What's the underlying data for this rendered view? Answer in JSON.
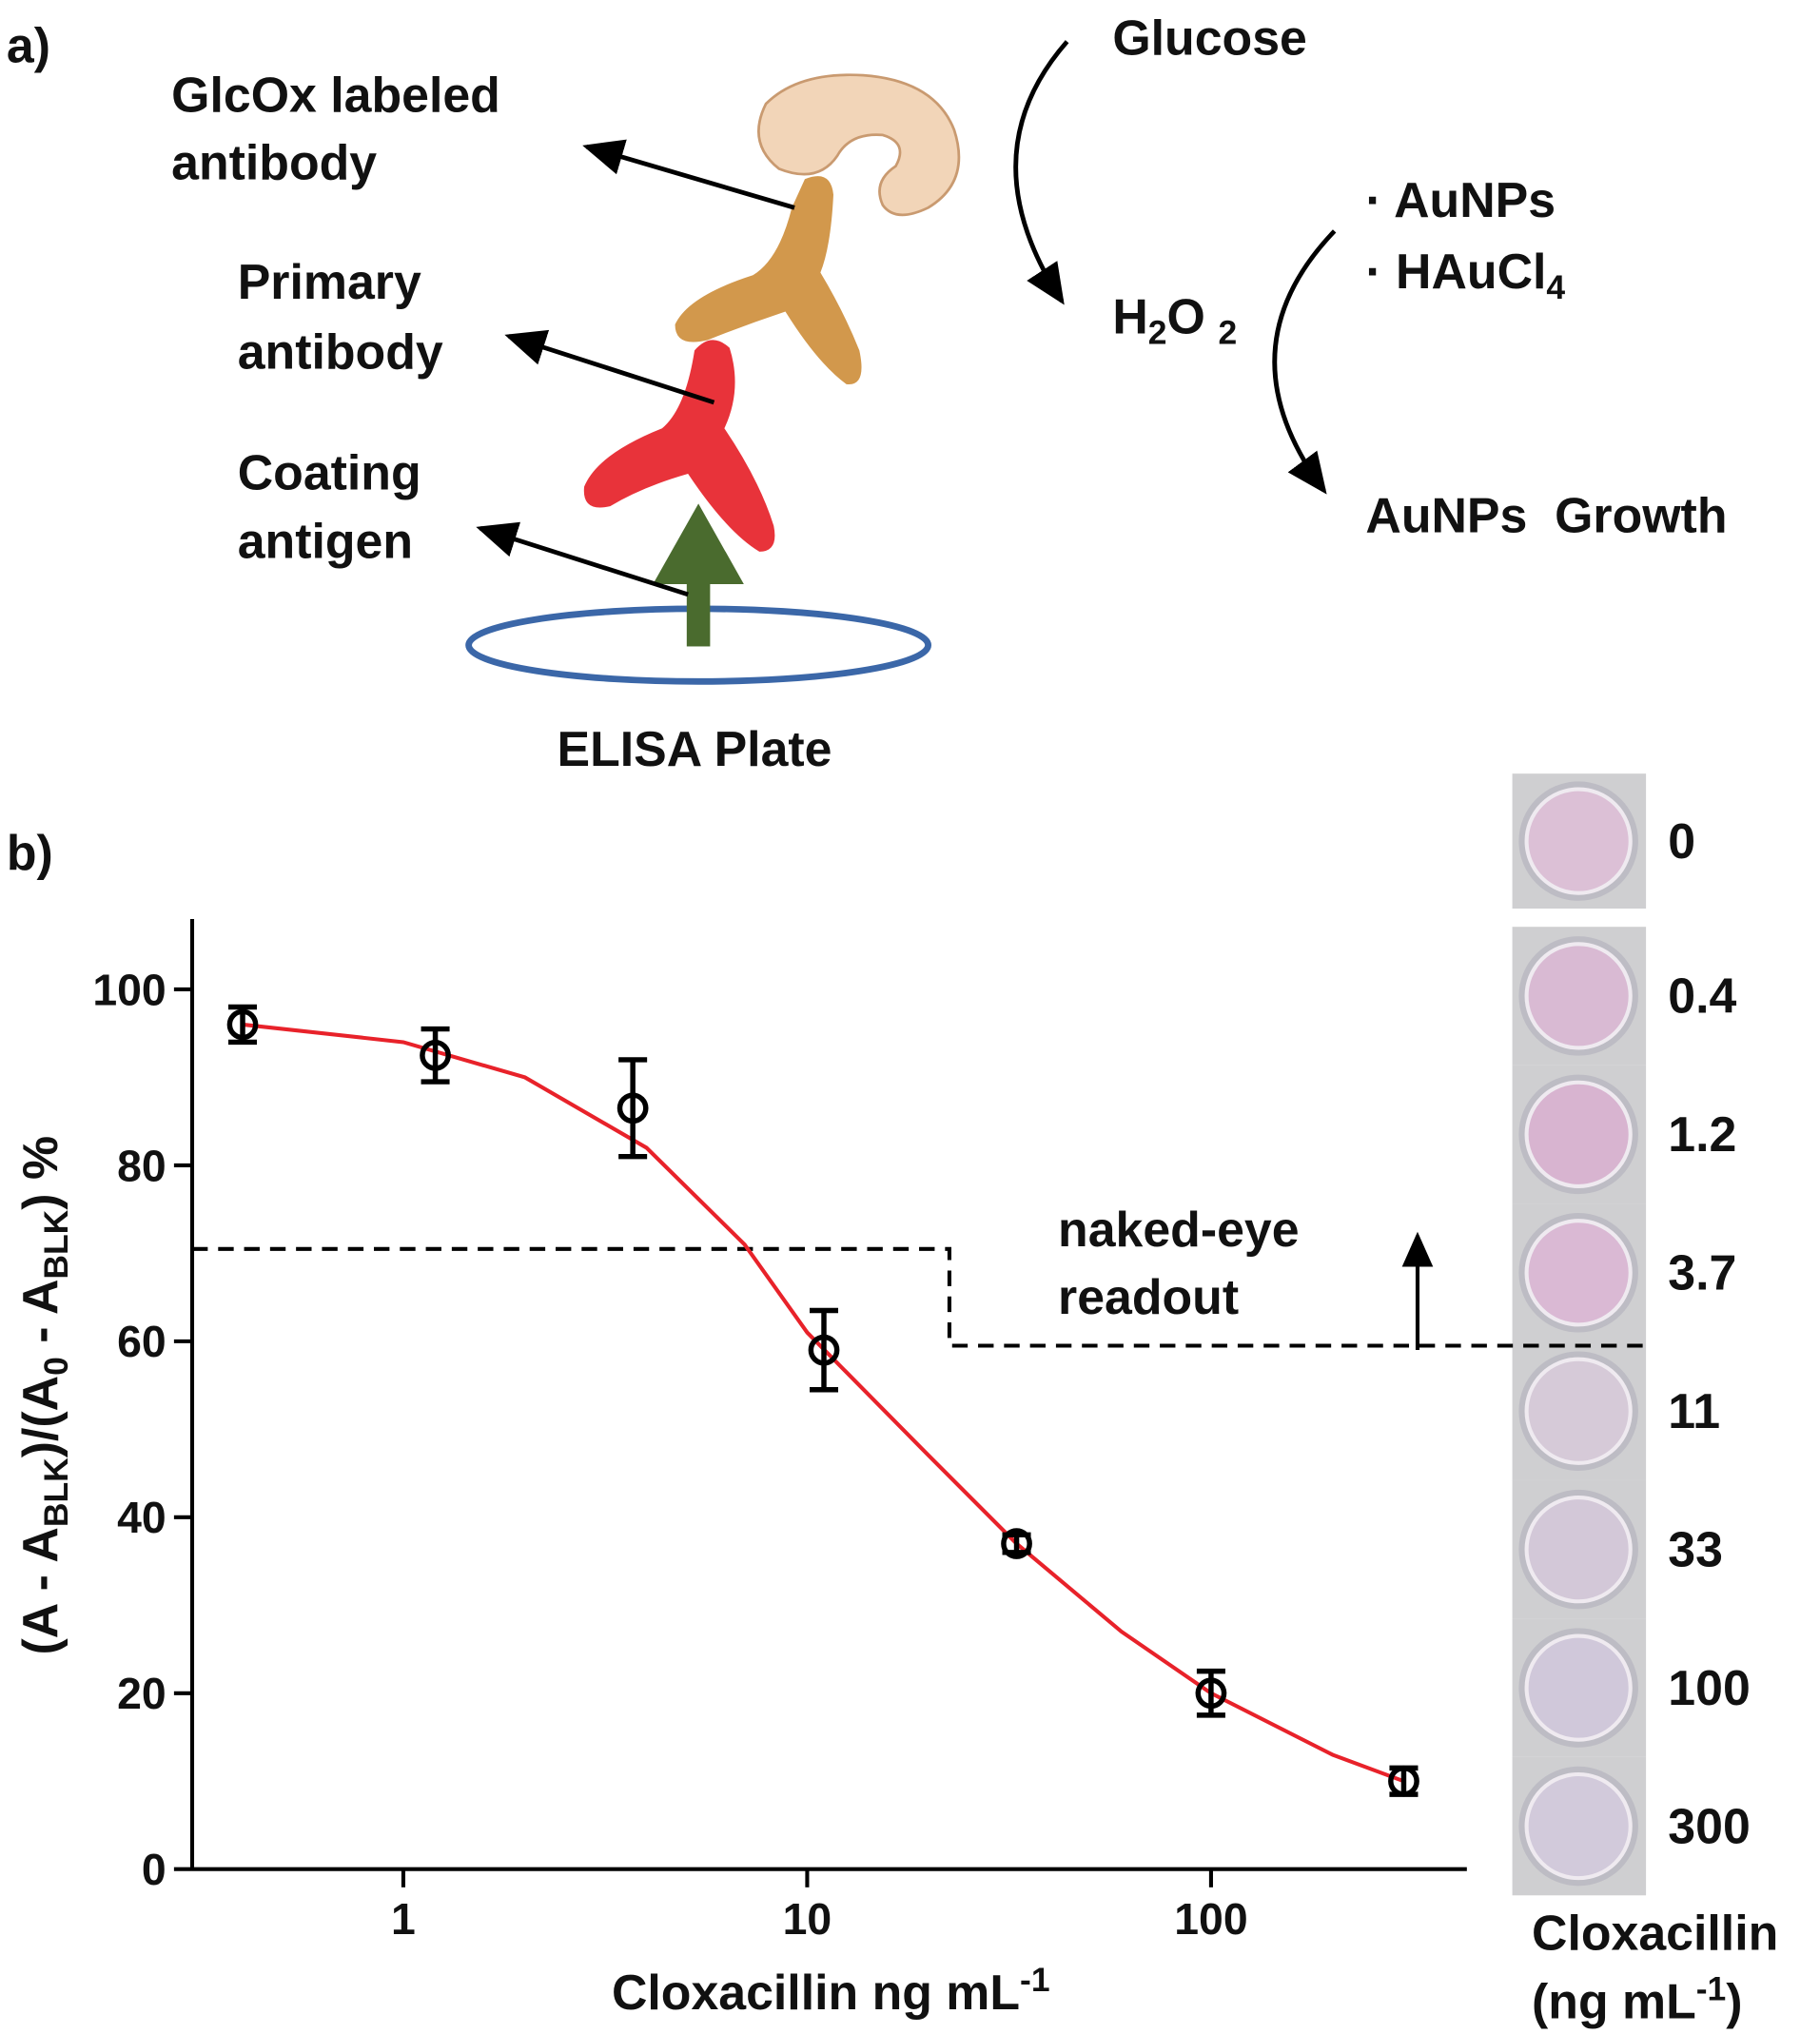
{
  "diagram": {
    "panel_a": "a)",
    "glcox": [
      "GlcOx labeled",
      "antibody"
    ],
    "primary": [
      "Primary",
      "antibody"
    ],
    "coating": [
      "Coating",
      "antigen"
    ],
    "plate": "ELISA Plate",
    "glucose": "Glucose",
    "h2o2": [
      "H",
      "2",
      "O",
      "2"
    ],
    "aunps": "· AuNPs",
    "haucl4": [
      "· HAuCl",
      "4"
    ],
    "growth": "AuNPs  Growth"
  },
  "chart_data": {
    "type": "scatter",
    "panel": "b)",
    "x_label": [
      "Cloxacillin ng mL",
      "-1"
    ],
    "y_label": [
      "(A - A",
      "BLK",
      ")/(A",
      "0",
      " - A",
      "BLK",
      ") %"
    ],
    "x": [
      0.4,
      1.2,
      3.7,
      11,
      33,
      100,
      300
    ],
    "values": [
      96,
      92.5,
      86.5,
      59,
      37,
      20,
      10
    ],
    "errors": [
      2,
      3,
      5.5,
      4.5,
      1,
      2.5,
      1.5
    ],
    "fit": {
      "color": "#e8222a",
      "x": [
        0.4,
        1,
        2,
        4,
        7,
        10,
        20,
        33,
        60,
        100,
        200,
        300
      ],
      "values": [
        96,
        94,
        90,
        82,
        71,
        61,
        47,
        37,
        27,
        20,
        13,
        10
      ]
    },
    "xscale": "log",
    "xlim": [
      0.3,
      430
    ],
    "xticks": [
      1,
      10,
      100
    ],
    "ylim": [
      0,
      108
    ],
    "yticks": [
      0,
      20,
      40,
      60,
      80,
      100
    ],
    "threshold": {
      "break_x": 22.5,
      "y_before": 70.5,
      "y_after": 59.5
    },
    "annotation": [
      "naked-eye",
      "readout"
    ],
    "wells": {
      "labels": [
        "0",
        "0.4",
        "1.2",
        "3.7",
        "11",
        "33",
        "100",
        "300"
      ],
      "colors": [
        "#dcc0d6",
        "#d9bad3",
        "#d8b4d0",
        "#dab9d4",
        "#d6cad8",
        "#d3c8d8",
        "#d0c8da",
        "#d2cadb"
      ],
      "title": [
        "Cloxacillin",
        "(ng mL",
        "-1",
        ")"
      ]
    }
  }
}
